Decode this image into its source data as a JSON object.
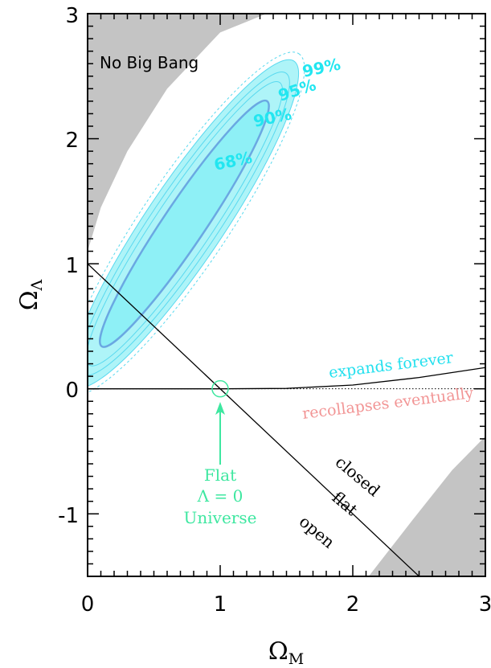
{
  "chart_data": {
    "type": "contour",
    "xlabel": "Ω",
    "xlabel_sub": "M",
    "ylabel": "Ω",
    "ylabel_sub": "Λ",
    "xlim": [
      0,
      3
    ],
    "ylim": [
      -1.5,
      3
    ],
    "xticks": [
      0,
      1,
      2,
      3
    ],
    "yticks": [
      -1,
      0,
      1,
      2,
      3
    ],
    "xtick_labels": [
      "0",
      "1",
      "2",
      "3"
    ],
    "ytick_labels": [
      "-1",
      "0",
      "1",
      "2",
      "3"
    ],
    "grid": false,
    "contour_center": [
      0.73,
      1.32
    ],
    "confidence_levels": [
      {
        "label": "68%",
        "x_range": [
          0.0,
          1.25
        ],
        "y_range": [
          0.3,
          2.07
        ]
      },
      {
        "label": "90%",
        "x_range": [
          0.0,
          1.48
        ],
        "y_range": [
          0.08,
          2.2
        ]
      },
      {
        "label": "95%",
        "x_range": [
          0.0,
          1.6
        ],
        "y_range": [
          0.0,
          2.3
        ]
      },
      {
        "label": "99%",
        "x_range": [
          0.0,
          1.65
        ],
        "y_range": [
          -0.15,
          2.53
        ]
      }
    ],
    "lines": [
      {
        "name": "flat",
        "points": [
          [
            0,
            1
          ],
          [
            2.5,
            -1.5
          ]
        ]
      },
      {
        "name": "expansion-boundary",
        "points": [
          [
            0,
            0
          ],
          [
            1,
            0
          ],
          [
            1.5,
            0.003
          ],
          [
            2,
            0.03
          ],
          [
            2.5,
            0.09
          ],
          [
            3,
            0.17
          ]
        ]
      }
    ],
    "excluded_regions": [
      {
        "name": "No Big Bang",
        "boundary": [
          [
            0,
            1.1
          ],
          [
            0.1,
            1.45
          ],
          [
            0.3,
            1.9
          ],
          [
            0.6,
            2.4
          ],
          [
            1.0,
            2.85
          ],
          [
            1.35,
            3
          ]
        ]
      },
      {
        "name": "lower-right",
        "boundary": [
          [
            2.12,
            -1.5
          ],
          [
            2.45,
            -1.05
          ],
          [
            2.75,
            -0.65
          ],
          [
            3,
            -0.38
          ]
        ]
      }
    ],
    "marker": {
      "x": 1,
      "y": 0,
      "shape": "circle"
    },
    "annotations": {
      "no_big_bang": "No Big Bang",
      "level_68": "68%",
      "level_90": "90%",
      "level_95": "95%",
      "level_99": "99%",
      "expands_forever": "expands forever",
      "recollapses_eventually": "recollapses eventually",
      "closed": "closed",
      "flat": "flat",
      "open": "open",
      "flat_universe_line1": "Flat",
      "flat_universe_line2": "Λ = 0",
      "flat_universe_line3": "Universe"
    },
    "colors": {
      "excluded_region": "#c4c4c4",
      "contour_fill": "#aef4f8",
      "contour_fill_inner": "#8ef0f6",
      "contour_line": "#59d9ef",
      "contour_inner_line": "#6aa8e2",
      "contour_label": "#22e6f0",
      "expands_text": "#23e0ee",
      "recollapses_text": "#f29595",
      "flat_universe": "#3ee7a0"
    }
  }
}
